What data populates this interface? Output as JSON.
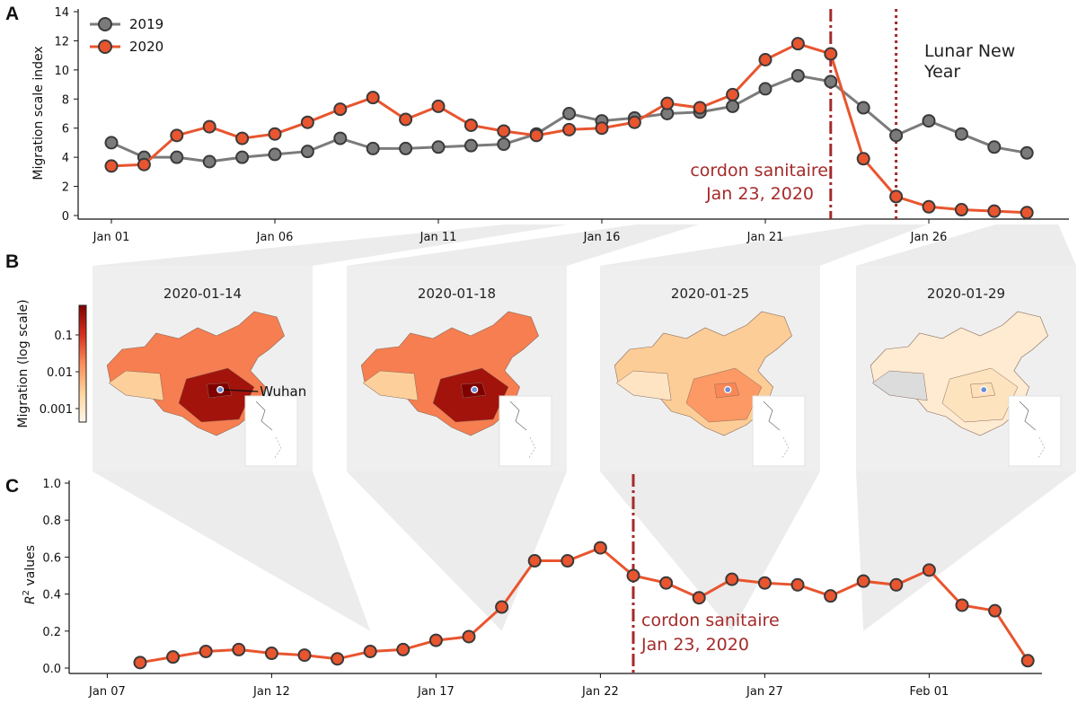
{
  "colors": {
    "series_2019": "#7b7b7b",
    "series_2020": "#e8552f",
    "marker_edge": "#3a3a3a",
    "cordon": "#a52a2a",
    "lunar": "#9e2a2a",
    "wedge": "#dddddd",
    "map_frame": "#efefef"
  },
  "panel_labels": {
    "a": "A",
    "b": "B",
    "c": "C"
  },
  "chart_data": [
    {
      "id": "A",
      "type": "line",
      "x": [
        "Jan 01",
        "Jan 02",
        "Jan 03",
        "Jan 04",
        "Jan 05",
        "Jan 06",
        "Jan 07",
        "Jan 08",
        "Jan 09",
        "Jan 10",
        "Jan 11",
        "Jan 12",
        "Jan 13",
        "Jan 14",
        "Jan 15",
        "Jan 16",
        "Jan 17",
        "Jan 18",
        "Jan 19",
        "Jan 20",
        "Jan 21",
        "Jan 22",
        "Jan 23",
        "Jan 24",
        "Jan 25",
        "Jan 26",
        "Jan 27",
        "Jan 28",
        "Jan 29"
      ],
      "series": [
        {
          "name": "2019",
          "values": [
            5.0,
            4.0,
            4.0,
            3.7,
            4.0,
            4.2,
            4.4,
            5.3,
            4.6,
            4.6,
            4.7,
            4.8,
            4.9,
            5.6,
            7.0,
            6.5,
            6.7,
            7.0,
            7.1,
            7.5,
            8.7,
            9.6,
            9.2,
            7.4,
            5.5,
            6.5,
            5.6,
            4.7,
            4.3
          ]
        },
        {
          "name": "2020",
          "values": [
            3.4,
            3.5,
            5.5,
            6.1,
            5.3,
            5.6,
            6.4,
            7.3,
            8.1,
            6.6,
            7.5,
            6.2,
            5.8,
            5.5,
            5.9,
            6.0,
            6.4,
            7.7,
            7.4,
            8.3,
            10.7,
            11.8,
            11.1,
            3.9,
            1.3,
            0.6,
            0.4,
            0.3,
            0.2
          ]
        }
      ],
      "ylabel": "Migration scale index",
      "ylim": [
        0,
        14.5
      ],
      "yticks": [
        0,
        2,
        4,
        6,
        8,
        10,
        12,
        14
      ],
      "xticks": [
        {
          "label": "Jan 01",
          "x": 0
        },
        {
          "label": "Jan 06",
          "x": 5
        },
        {
          "label": "Jan 11",
          "x": 10
        },
        {
          "label": "Jan 16",
          "x": 15
        },
        {
          "label": "Jan 21",
          "x": 20
        },
        {
          "label": "Jan 26",
          "x": 25
        }
      ],
      "legend": {
        "position": "top-left",
        "entries": [
          "2019",
          "2020"
        ]
      },
      "annotations": {
        "cordon_line1": "cordon sanitaire",
        "cordon_line2": "Jan 23, 2020",
        "cordon_x": 22.0,
        "lunar_line1": "Lunar New",
        "lunar_line2": "Year",
        "lunar_x": 24.0
      }
    },
    {
      "id": "B",
      "type": "choropleth-map",
      "colorbar_label": "Migration (log scale)",
      "colorbar_ticks": [
        "0.1",
        "0.01",
        "0.001"
      ],
      "maps": [
        {
          "date": "2020-01-14",
          "intensity": 0.75,
          "panel_a_x": 13,
          "panel_c_x": 7
        },
        {
          "date": "2020-01-18",
          "intensity": 0.75,
          "panel_a_x": 17,
          "panel_c_x": 11
        },
        {
          "date": "2020-01-25",
          "intensity": 0.38,
          "panel_a_x": 24,
          "panel_c_x": 18
        },
        {
          "date": "2020-01-29",
          "intensity": 0.12,
          "panel_a_x": 28,
          "panel_c_x": 22
        }
      ],
      "city_label": "Wuhan"
    },
    {
      "id": "C",
      "type": "line",
      "x": [
        "Jan 08",
        "Jan 09",
        "Jan 10",
        "Jan 11",
        "Jan 12",
        "Jan 13",
        "Jan 14",
        "Jan 15",
        "Jan 16",
        "Jan 17",
        "Jan 18",
        "Jan 19",
        "Jan 20",
        "Jan 21",
        "Jan 22",
        "Jan 23",
        "Jan 24",
        "Jan 25",
        "Jan 26",
        "Jan 27",
        "Jan 28",
        "Jan 29",
        "Jan 30",
        "Jan 31",
        "Feb 01",
        "Feb 02",
        "Feb 03",
        "Feb 04"
      ],
      "series": [
        {
          "name": "R2",
          "values": [
            0.03,
            0.06,
            0.09,
            0.1,
            0.08,
            0.07,
            0.05,
            0.09,
            0.1,
            0.15,
            0.17,
            0.33,
            0.58,
            0.58,
            0.65,
            0.5,
            0.46,
            0.38,
            0.48,
            0.46,
            0.45,
            0.39,
            0.47,
            0.45,
            0.53,
            0.34,
            0.31,
            0.04
          ]
        }
      ],
      "ylabel_main": "R",
      "ylabel_sup": "2",
      "ylabel_rest": " values",
      "ylim": [
        0,
        1.05
      ],
      "yticks": [
        "0.0",
        "0.2",
        "0.4",
        "0.6",
        "0.8",
        "1.0"
      ],
      "xticks": [
        {
          "label": "Jan 07",
          "x": -1
        },
        {
          "label": "Jan 12",
          "x": 4
        },
        {
          "label": "Jan 17",
          "x": 9
        },
        {
          "label": "Jan 22",
          "x": 14
        },
        {
          "label": "Jan 27",
          "x": 19
        },
        {
          "label": "Feb 01",
          "x": 24
        }
      ],
      "annotations": {
        "cordon_line1": "cordon sanitaire",
        "cordon_line2": "Jan 23, 2020",
        "cordon_x": 15.0
      }
    }
  ]
}
